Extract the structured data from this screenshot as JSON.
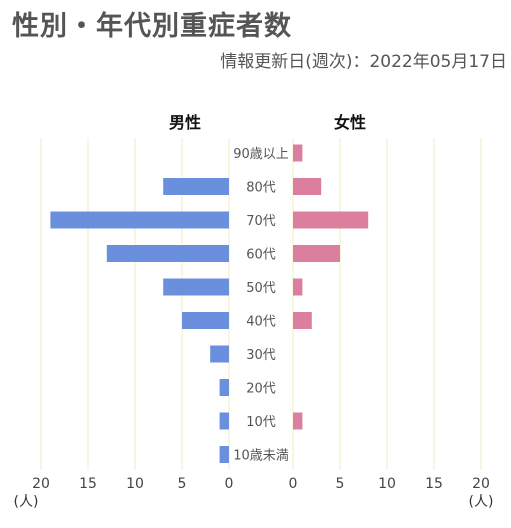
{
  "header": {
    "title": "性別・年代別重症者数",
    "subtitle": "情報更新日(週次)：2022年05月17日"
  },
  "colors": {
    "male": "#6a8fdc",
    "female": "#dc7f9e",
    "grid": "#f5efc8"
  },
  "chart_data": {
    "type": "bar",
    "orientation": "horizontal-butterfly",
    "categories": [
      "90歳以上",
      "80代",
      "70代",
      "60代",
      "50代",
      "40代",
      "30代",
      "20代",
      "10代",
      "10歳未満"
    ],
    "series": [
      {
        "name": "男性",
        "values": [
          0,
          7,
          19,
          13,
          7,
          5,
          2,
          1,
          1,
          1
        ]
      },
      {
        "name": "女性",
        "values": [
          1,
          3,
          8,
          5,
          1,
          2,
          0,
          0,
          1,
          0
        ]
      }
    ],
    "xlim": [
      0,
      20
    ],
    "ticks": [
      "0",
      "5",
      "10",
      "15",
      "20"
    ],
    "unit": "(人)",
    "grid": true
  }
}
